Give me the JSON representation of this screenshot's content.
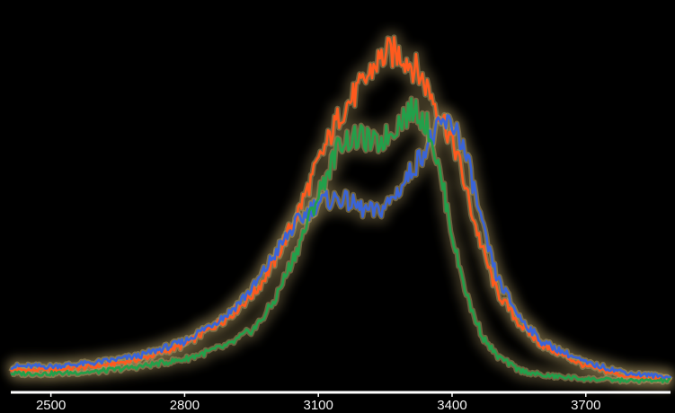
{
  "chart_data": {
    "type": "line",
    "title": "",
    "xlabel": "",
    "ylabel": "",
    "xlim": [
      2410,
      3890
    ],
    "ylim": [
      0,
      1
    ],
    "grid": false,
    "legend": "none",
    "x_ticks": [
      2500,
      2800,
      3100,
      3400,
      3700
    ],
    "x_tick_labels": [
      "2500",
      "2800",
      "3100",
      "3400",
      "3700"
    ],
    "colors": {
      "background": "#000000",
      "axis": "#ffffff",
      "glow": "#b8a56a"
    },
    "series": [
      {
        "color": "#ff5a1e",
        "x": [
          2410,
          2500,
          2600,
          2700,
          2800,
          2900,
          2960,
          3000,
          3050,
          3100,
          3150,
          3200,
          3230,
          3260,
          3290,
          3320,
          3350,
          3380,
          3410,
          3440,
          3470,
          3500,
          3550,
          3600,
          3700,
          3800,
          3890
        ],
        "y": [
          0.04,
          0.04,
          0.05,
          0.07,
          0.11,
          0.19,
          0.26,
          0.34,
          0.47,
          0.62,
          0.76,
          0.84,
          0.9,
          0.93,
          0.92,
          0.88,
          0.82,
          0.74,
          0.65,
          0.5,
          0.37,
          0.26,
          0.17,
          0.11,
          0.05,
          0.02,
          0.015
        ]
      },
      {
        "color": "#3a64d8",
        "x": [
          2410,
          2500,
          2600,
          2700,
          2800,
          2900,
          2960,
          3000,
          3050,
          3100,
          3150,
          3200,
          3230,
          3260,
          3290,
          3320,
          3350,
          3380,
          3410,
          3440,
          3470,
          3500,
          3550,
          3600,
          3700,
          3800,
          3890
        ],
        "y": [
          0.05,
          0.05,
          0.06,
          0.08,
          0.12,
          0.2,
          0.28,
          0.36,
          0.45,
          0.51,
          0.52,
          0.49,
          0.48,
          0.51,
          0.56,
          0.62,
          0.68,
          0.73,
          0.72,
          0.6,
          0.43,
          0.3,
          0.19,
          0.12,
          0.06,
          0.03,
          0.02
        ]
      },
      {
        "color": "#22a04a",
        "x": [
          2410,
          2500,
          2600,
          2700,
          2800,
          2900,
          2960,
          3000,
          3050,
          3100,
          3150,
          3200,
          3230,
          3260,
          3290,
          3320,
          3350,
          3380,
          3410,
          3440,
          3470,
          3500,
          3550,
          3600,
          3700,
          3800,
          3890
        ],
        "y": [
          0.03,
          0.03,
          0.035,
          0.05,
          0.07,
          0.11,
          0.16,
          0.23,
          0.37,
          0.53,
          0.68,
          0.69,
          0.67,
          0.7,
          0.75,
          0.77,
          0.71,
          0.55,
          0.36,
          0.22,
          0.13,
          0.08,
          0.04,
          0.025,
          0.015,
          0.01,
          0.01
        ]
      }
    ]
  }
}
